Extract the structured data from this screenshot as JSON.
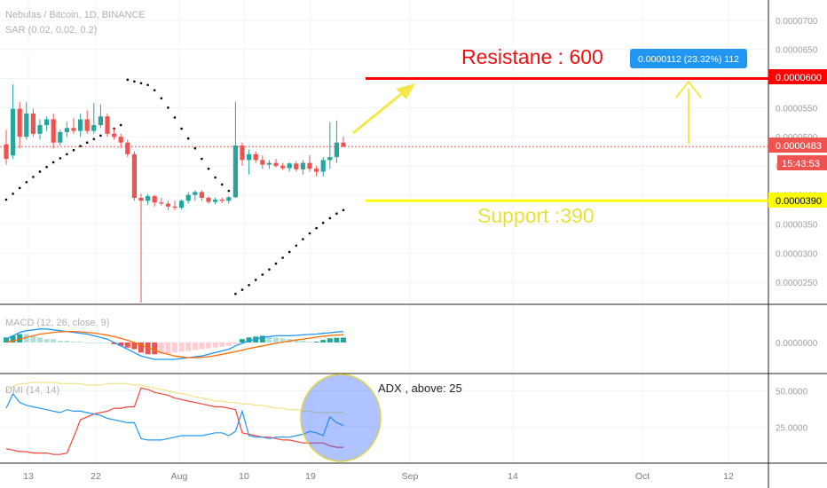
{
  "header": {
    "symbol": "Nebulas / Bitcoin, 1D, BINANCE",
    "sar": "SAR (0.02, 0.02, 0.2)",
    "macd": "MACD (12, 26, close, 9)",
    "dmi": "DMI (14, 14)"
  },
  "annotations": {
    "resistance": "Resistane : 600",
    "support": "Support :390",
    "adx": "ADX , above: 25",
    "measure": "0.0000112 (23.32%) 112"
  },
  "price_tags": {
    "resistance": "0.0000600",
    "last": "0.0000483",
    "countdown": "15:43:53",
    "support": "0.0000390"
  },
  "colors": {
    "up": "#26a69a",
    "down": "#ef5350",
    "resistance": "#ff0000",
    "support": "#ffff00",
    "arrow": "#f5e74a",
    "sar": "#000000",
    "macd_line": "#2196f3",
    "signal_line": "#ff6d00",
    "plus_di": "#2196f3",
    "minus_di": "#f44336",
    "adx": "#f0e68c",
    "highlight": "#2962ff",
    "measure": "#2196f3"
  },
  "chart_data": {
    "type": "candlestick",
    "x_ticks": [
      "13",
      "22",
      "Aug",
      "10",
      "19",
      "Sep",
      "14",
      "Oct",
      "12"
    ],
    "price_axis": {
      "ticks": [
        "0.0000700",
        "0.0000650",
        "0.0000600",
        "0.0000550",
        "0.0000500",
        "0.0000450",
        "0.0000400",
        "0.0000350",
        "0.0000300",
        "0.0000250"
      ],
      "range": [
        2.12e-05,
        7.35e-05
      ]
    },
    "macd_axis": {
      "ticks": [
        "0.0000000"
      ]
    },
    "dmi_axis": {
      "ticks": [
        "50.0000",
        "25.0000"
      ],
      "range": [
        0,
        62
      ]
    },
    "candles": [
      {
        "o": 4.87e-05,
        "h": 5.12e-05,
        "l": 4.52e-05,
        "c": 4.62e-05
      },
      {
        "o": 4.68e-05,
        "h": 5.9e-05,
        "l": 4.62e-05,
        "c": 5.48e-05
      },
      {
        "o": 5.48e-05,
        "h": 5.6e-05,
        "l": 4.8e-05,
        "c": 5e-05
      },
      {
        "o": 5e-05,
        "h": 5.6e-05,
        "l": 4.95e-05,
        "c": 5.4e-05
      },
      {
        "o": 5.4e-05,
        "h": 5.48e-05,
        "l": 5e-05,
        "c": 5.05e-05
      },
      {
        "o": 5.05e-05,
        "h": 5.3e-05,
        "l": 4.95e-05,
        "c": 5.2e-05
      },
      {
        "o": 5.2e-05,
        "h": 5.35e-05,
        "l": 5.1e-05,
        "c": 5.3e-05
      },
      {
        "o": 5.3e-05,
        "h": 5.4e-05,
        "l": 4.8e-05,
        "c": 4.9e-05
      },
      {
        "o": 4.9e-05,
        "h": 5.12e-05,
        "l": 4.85e-05,
        "c": 5.08e-05
      },
      {
        "o": 5.08e-05,
        "h": 5.25e-05,
        "l": 5e-05,
        "c": 5.15e-05
      },
      {
        "o": 5.15e-05,
        "h": 5.32e-05,
        "l": 5.05e-05,
        "c": 5.1e-05
      },
      {
        "o": 5.1e-05,
        "h": 5.4e-05,
        "l": 5e-05,
        "c": 5.3e-05
      },
      {
        "o": 5.3e-05,
        "h": 5.45e-05,
        "l": 5.05e-05,
        "c": 5.1e-05
      },
      {
        "o": 5.1e-05,
        "h": 5.58e-05,
        "l": 5.05e-05,
        "c": 5.2e-05
      },
      {
        "o": 5.2e-05,
        "h": 5.56e-05,
        "l": 5.15e-05,
        "c": 5.35e-05
      },
      {
        "o": 5.35e-05,
        "h": 5.4e-05,
        "l": 5e-05,
        "c": 5.05e-05
      },
      {
        "o": 5.05e-05,
        "h": 5.15e-05,
        "l": 4.95e-05,
        "c": 5e-05
      },
      {
        "o": 5e-05,
        "h": 5.05e-05,
        "l": 4.8e-05,
        "c": 4.9e-05
      },
      {
        "o": 4.9e-05,
        "h": 4.95e-05,
        "l": 4.65e-05,
        "c": 4.7e-05
      },
      {
        "o": 4.7e-05,
        "h": 4.75e-05,
        "l": 3.9e-05,
        "c": 3.95e-05
      },
      {
        "o": 3.95e-05,
        "h": 4.02e-05,
        "l": 2.15e-05,
        "c": 3.9e-05
      },
      {
        "o": 3.9e-05,
        "h": 4.02e-05,
        "l": 3.83e-05,
        "c": 3.98e-05
      },
      {
        "o": 3.98e-05,
        "h": 4e-05,
        "l": 3.8e-05,
        "c": 3.87e-05
      },
      {
        "o": 3.87e-05,
        "h": 3.95e-05,
        "l": 3.82e-05,
        "c": 3.85e-05
      },
      {
        "o": 3.85e-05,
        "h": 3.9e-05,
        "l": 3.74e-05,
        "c": 3.8e-05
      },
      {
        "o": 3.8e-05,
        "h": 3.9e-05,
        "l": 3.74e-05,
        "c": 3.78e-05
      },
      {
        "o": 3.78e-05,
        "h": 3.92e-05,
        "l": 3.75e-05,
        "c": 3.9e-05
      },
      {
        "o": 3.9e-05,
        "h": 4.05e-05,
        "l": 3.85e-05,
        "c": 4e-05
      },
      {
        "o": 4e-05,
        "h": 4.08e-05,
        "l": 3.9e-05,
        "c": 4.05e-05
      },
      {
        "o": 4.05e-05,
        "h": 4.08e-05,
        "l": 3.9e-05,
        "c": 3.95e-05
      },
      {
        "o": 3.95e-05,
        "h": 3.98e-05,
        "l": 3.85e-05,
        "c": 3.88e-05
      },
      {
        "o": 3.88e-05,
        "h": 3.95e-05,
        "l": 3.84e-05,
        "c": 3.92e-05
      },
      {
        "o": 3.92e-05,
        "h": 3.95e-05,
        "l": 3.86e-05,
        "c": 3.9e-05
      },
      {
        "o": 3.9e-05,
        "h": 3.98e-05,
        "l": 3.85e-05,
        "c": 3.96e-05
      },
      {
        "o": 3.96e-05,
        "h": 5.6e-05,
        "l": 3.95e-05,
        "c": 4.85e-05
      },
      {
        "o": 4.85e-05,
        "h": 4.9e-05,
        "l": 4.5e-05,
        "c": 4.6e-05
      },
      {
        "o": 4.6e-05,
        "h": 4.78e-05,
        "l": 4.35e-05,
        "c": 4.7e-05
      },
      {
        "o": 4.7e-05,
        "h": 4.75e-05,
        "l": 4.55e-05,
        "c": 4.6e-05
      },
      {
        "o": 4.6e-05,
        "h": 4.68e-05,
        "l": 4.45e-05,
        "c": 4.52e-05
      },
      {
        "o": 4.52e-05,
        "h": 4.6e-05,
        "l": 4.45e-05,
        "c": 4.55e-05
      },
      {
        "o": 4.55e-05,
        "h": 4.62e-05,
        "l": 4.47e-05,
        "c": 4.5e-05
      },
      {
        "o": 4.5e-05,
        "h": 4.55e-05,
        "l": 4.43e-05,
        "c": 4.46e-05
      },
      {
        "o": 4.46e-05,
        "h": 4.56e-05,
        "l": 4.4e-05,
        "c": 4.54e-05
      },
      {
        "o": 4.54e-05,
        "h": 4.58e-05,
        "l": 4.4e-05,
        "c": 4.44e-05
      },
      {
        "o": 4.44e-05,
        "h": 4.6e-05,
        "l": 4.35e-05,
        "c": 4.55e-05
      },
      {
        "o": 4.55e-05,
        "h": 4.68e-05,
        "l": 4.4e-05,
        "c": 4.45e-05
      },
      {
        "o": 4.45e-05,
        "h": 4.5e-05,
        "l": 4.32e-05,
        "c": 4.4e-05
      },
      {
        "o": 4.4e-05,
        "h": 4.65e-05,
        "l": 4.32e-05,
        "c": 4.6e-05
      },
      {
        "o": 4.6e-05,
        "h": 5.25e-05,
        "l": 4.45e-05,
        "c": 4.65e-05
      },
      {
        "o": 4.65e-05,
        "h": 5.28e-05,
        "l": 4.55e-05,
        "c": 4.9e-05
      },
      {
        "o": 4.9e-05,
        "h": 5e-05,
        "l": 4.82e-05,
        "c": 4.83e-05
      }
    ],
    "sar_points": [
      {
        "i": 0,
        "v": 3.92e-05
      },
      {
        "i": 1,
        "v": 4.02e-05
      },
      {
        "i": 2,
        "v": 4.12e-05
      },
      {
        "i": 3,
        "v": 4.22e-05
      },
      {
        "i": 4,
        "v": 4.31e-05
      },
      {
        "i": 5,
        "v": 4.4e-05
      },
      {
        "i": 6,
        "v": 4.48e-05
      },
      {
        "i": 7,
        "v": 4.56e-05
      },
      {
        "i": 8,
        "v": 4.63e-05
      },
      {
        "i": 9,
        "v": 4.7e-05
      },
      {
        "i": 10,
        "v": 4.77e-05
      },
      {
        "i": 11,
        "v": 4.84e-05
      },
      {
        "i": 12,
        "v": 4.9e-05
      },
      {
        "i": 13,
        "v": 4.96e-05
      },
      {
        "i": 14,
        "v": 5.02e-05
      },
      {
        "i": 15,
        "v": 5.08e-05
      },
      {
        "i": 16,
        "v": 5.14e-05
      },
      {
        "i": 17,
        "v": 5.2e-05
      },
      {
        "i": 18,
        "v": 5.98e-05
      },
      {
        "i": 19,
        "v": 5.95e-05
      },
      {
        "i": 20,
        "v": 5.92e-05
      },
      {
        "i": 21,
        "v": 5.89e-05
      },
      {
        "i": 22,
        "v": 5.8e-05
      },
      {
        "i": 23,
        "v": 5.66e-05
      },
      {
        "i": 24,
        "v": 5.5e-05
      },
      {
        "i": 25,
        "v": 5.33e-05
      },
      {
        "i": 26,
        "v": 5.14e-05
      },
      {
        "i": 27,
        "v": 4.97e-05
      },
      {
        "i": 28,
        "v": 4.8e-05
      },
      {
        "i": 29,
        "v": 4.62e-05
      },
      {
        "i": 30,
        "v": 4.45e-05
      },
      {
        "i": 31,
        "v": 4.3e-05
      },
      {
        "i": 32,
        "v": 4.18e-05
      },
      {
        "i": 33,
        "v": 4.07e-05
      },
      {
        "i": 34,
        "v": 2.3e-05
      },
      {
        "i": 35,
        "v": 2.37e-05
      },
      {
        "i": 36,
        "v": 2.45e-05
      },
      {
        "i": 37,
        "v": 2.54e-05
      },
      {
        "i": 38,
        "v": 2.63e-05
      },
      {
        "i": 39,
        "v": 2.72e-05
      },
      {
        "i": 40,
        "v": 2.82e-05
      },
      {
        "i": 41,
        "v": 2.92e-05
      },
      {
        "i": 42,
        "v": 3.02e-05
      },
      {
        "i": 43,
        "v": 3.13e-05
      },
      {
        "i": 44,
        "v": 3.24e-05
      },
      {
        "i": 45,
        "v": 3.34e-05
      },
      {
        "i": 46,
        "v": 3.43e-05
      },
      {
        "i": 47,
        "v": 3.52e-05
      },
      {
        "i": 48,
        "v": 3.6e-05
      },
      {
        "i": 49,
        "v": 3.68e-05
      },
      {
        "i": 50,
        "v": 3.74e-05
      }
    ],
    "macd_hist": [
      3,
      4,
      5,
      5,
      4,
      3,
      2,
      2,
      1,
      1,
      0.5,
      0.5,
      0,
      0,
      0,
      0,
      -1,
      -2,
      -3,
      -4,
      -6,
      -7,
      -7,
      -7,
      -6.5,
      -6,
      -5.5,
      -5,
      -4.5,
      -4,
      -3.5,
      -3,
      -2.5,
      -2,
      -1,
      2,
      3,
      3.5,
      4,
      3.5,
      3,
      2.5,
      2,
      1.5,
      1,
      0.5,
      0.5,
      1.5,
      2.5,
      2.8,
      2.9
    ],
    "macd_hist_colors": [
      "#26a69a",
      "#26a69a",
      "#26a69a",
      "#b2dfdb",
      "#b2dfdb",
      "#b2dfdb",
      "#b2dfdb",
      "#b2dfdb",
      "#b2dfdb",
      "#b2dfdb",
      "#b2dfdb",
      "#b2dfdb",
      "#b2dfdb",
      "#b2dfdb",
      "#b2dfdb",
      "#b2dfdb",
      "#ef5350",
      "#ef5350",
      "#ef5350",
      "#ef5350",
      "#ef5350",
      "#ef5350",
      "#ef5350",
      "#ffcdd2",
      "#ffcdd2",
      "#ffcdd2",
      "#ffcdd2",
      "#ffcdd2",
      "#ffcdd2",
      "#ffcdd2",
      "#ffcdd2",
      "#ffcdd2",
      "#ffcdd2",
      "#ffcdd2",
      "#ffcdd2",
      "#26a69a",
      "#26a69a",
      "#26a69a",
      "#26a69a",
      "#b2dfdb",
      "#b2dfdb",
      "#b2dfdb",
      "#b2dfdb",
      "#b2dfdb",
      "#b2dfdb",
      "#b2dfdb",
      "#26a69a",
      "#26a69a",
      "#26a69a",
      "#26a69a",
      "#26a69a"
    ],
    "macd_line": [
      2,
      4,
      6,
      7,
      7.5,
      8,
      8,
      7.5,
      7,
      6.5,
      6,
      5.5,
      5,
      4,
      3,
      2,
      0,
      -2,
      -4,
      -6,
      -8,
      -9,
      -10,
      -10,
      -10,
      -10,
      -9.5,
      -9,
      -8.5,
      -8,
      -7,
      -6,
      -5,
      -4,
      -2,
      -0.5,
      1,
      2,
      3,
      3.5,
      4,
      4,
      4,
      4.2,
      4.5,
      4.8,
      5,
      5.4,
      5.8,
      6.2,
      6.5
    ],
    "signal_line": [
      0,
      1,
      2,
      3,
      4,
      5,
      5.5,
      6,
      6.3,
      6.5,
      6.5,
      6.3,
      6,
      5.6,
      5,
      4.3,
      3.5,
      2.5,
      1.3,
      0,
      -1.5,
      -3,
      -4.5,
      -6,
      -7,
      -8,
      -8.6,
      -9,
      -9,
      -8.8,
      -8.4,
      -7.8,
      -7,
      -6.2,
      -5.4,
      -4.5,
      -3.6,
      -2.8,
      -2,
      -1.2,
      -0.5,
      0.2,
      0.9,
      1.5,
      2,
      2.6,
      3.2,
      3.7,
      4.1,
      4.4,
      4.6
    ],
    "plus_di": [
      38,
      48,
      42,
      40,
      39,
      38,
      37,
      36,
      35,
      37,
      36,
      36,
      35,
      34,
      33,
      31,
      30,
      29,
      28,
      28,
      17,
      16,
      16,
      16,
      17,
      18,
      19,
      19,
      19,
      19,
      20,
      21,
      21,
      19,
      22,
      36,
      19,
      18,
      18,
      17,
      18,
      18,
      18,
      19,
      20,
      22,
      21,
      19,
      32,
      28,
      26
    ],
    "minus_di": [
      10,
      9,
      8,
      8,
      7,
      7,
      7,
      6,
      6,
      7,
      18,
      30,
      32,
      34,
      35,
      36,
      38,
      38,
      39,
      39,
      52,
      51,
      49,
      48,
      47,
      45,
      44,
      43,
      42,
      41,
      40,
      39,
      39,
      38,
      37,
      21,
      20,
      19,
      18,
      18,
      17,
      16,
      16,
      15,
      14,
      14,
      14,
      14,
      12,
      11,
      11
    ],
    "adx": [
      50,
      53,
      55,
      55,
      56,
      56,
      56,
      56,
      55,
      55,
      55,
      55,
      54,
      54,
      54,
      55,
      55,
      55,
      55,
      54,
      54,
      53,
      52,
      51,
      50,
      49,
      48,
      47,
      46,
      45,
      44,
      43,
      43,
      42,
      42,
      41,
      41,
      40,
      40,
      39,
      38,
      38,
      37,
      37,
      36,
      36,
      35,
      35,
      35,
      35,
      35
    ],
    "levels": {
      "resistance": 6e-05,
      "support": 3.9e-05,
      "last": 4.83e-05
    }
  }
}
